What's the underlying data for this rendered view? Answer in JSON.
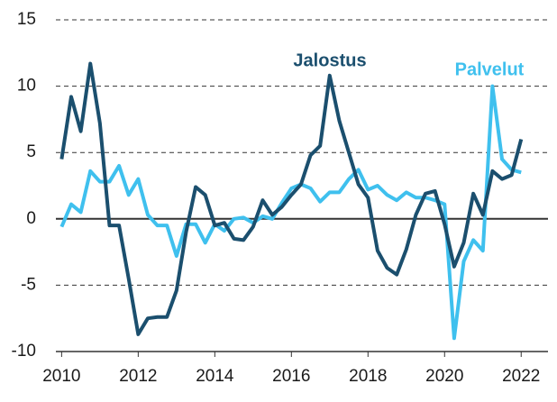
{
  "chart_data": {
    "type": "line",
    "x": [
      2010,
      2010.25,
      2010.5,
      2010.75,
      2011,
      2011.25,
      2011.5,
      2011.75,
      2012,
      2012.25,
      2012.5,
      2012.75,
      2013,
      2013.25,
      2013.5,
      2013.75,
      2014,
      2014.25,
      2014.5,
      2014.75,
      2015,
      2015.25,
      2015.5,
      2015.75,
      2016,
      2016.25,
      2016.5,
      2016.75,
      2017,
      2017.25,
      2017.5,
      2017.75,
      2018,
      2018.25,
      2018.5,
      2018.75,
      2019,
      2019.25,
      2019.5,
      2019.75,
      2020,
      2020.25,
      2020.5,
      2020.75,
      2021,
      2021.25,
      2021.5,
      2021.75,
      2022
    ],
    "series": [
      {
        "name": "Jalostus",
        "color": "#1b4f6e",
        "values": [
          4.5,
          9.2,
          6.6,
          11.7,
          7.2,
          -0.5,
          -0.5,
          -4.5,
          -8.7,
          -7.5,
          -7.4,
          -7.4,
          -5.4,
          -1.0,
          2.4,
          1.8,
          -0.5,
          -0.3,
          -1.5,
          -1.6,
          -0.6,
          1.4,
          0.3,
          0.9,
          1.8,
          2.6,
          4.8,
          5.5,
          10.8,
          7.4,
          5.0,
          2.6,
          1.6,
          -2.4,
          -3.7,
          -4.2,
          -2.3,
          0.3,
          1.9,
          2.1,
          -0.4,
          -3.6,
          -1.8,
          1.9,
          0.3,
          3.6,
          3.0,
          3.3,
          6.0
        ]
      },
      {
        "name": "Palvelut",
        "color": "#3fc0ee",
        "values": [
          -0.6,
          1.1,
          0.5,
          3.6,
          2.8,
          2.8,
          4.0,
          1.8,
          3.0,
          0.3,
          -0.5,
          -0.5,
          -2.8,
          -0.4,
          -0.4,
          -1.8,
          -0.4,
          -0.9,
          0.0,
          0.1,
          -0.3,
          0.2,
          0.0,
          1.2,
          2.3,
          2.6,
          2.3,
          1.3,
          2.0,
          2.0,
          3.0,
          3.7,
          2.2,
          2.5,
          1.8,
          1.4,
          2.0,
          1.6,
          1.6,
          1.4,
          1.1,
          -9.0,
          -3.2,
          -1.6,
          -2.4,
          10.0,
          4.5,
          3.7,
          3.5
        ]
      }
    ],
    "xlim": [
      2009.85,
      2022.7
    ],
    "xticks": [
      2010,
      2012,
      2014,
      2016,
      2018,
      2020,
      2022
    ],
    "ylim": [
      -10,
      15
    ],
    "yticks": [
      -10,
      -5,
      0,
      5,
      10,
      15
    ],
    "grid": true
  }
}
